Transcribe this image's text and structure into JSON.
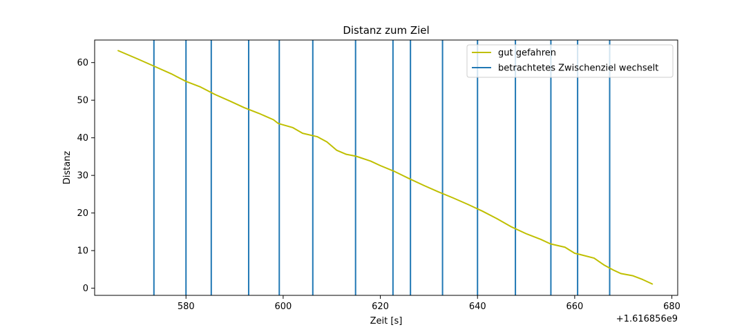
{
  "chart_data": {
    "type": "line",
    "title": "Distanz zum Ziel",
    "xlabel": "Zeit [s]",
    "ylabel": "Distanz",
    "x_offset_label": "+1.616856e9",
    "xlim": [
      561.2,
      681.2
    ],
    "ylim": [
      -1.9,
      66.0
    ],
    "xticks": [
      580,
      600,
      620,
      640,
      660,
      680
    ],
    "yticks": [
      0,
      10,
      20,
      30,
      40,
      50,
      60
    ],
    "grid": false,
    "legend_position": "top-right",
    "series": [
      {
        "name": "gut gefahren",
        "color": "#bfbf00",
        "kind": "line",
        "x": [
          566,
          570,
          573.5,
          577,
          580,
          583,
          586,
          589,
          592,
          595,
          598,
          599,
          602,
          604,
          607,
          609,
          611,
          613,
          615,
          618,
          620,
          623,
          626,
          629,
          632,
          635,
          638,
          641,
          644,
          647,
          650,
          653,
          655,
          658,
          660,
          661,
          664,
          666,
          668,
          669.5,
          672,
          674,
          676
        ],
        "y": [
          63.2,
          61,
          59,
          57,
          55,
          53.5,
          51.5,
          49.8,
          48,
          46.5,
          44.8,
          43.8,
          42.7,
          41.2,
          40.3,
          38.9,
          36.7,
          35.6,
          35.1,
          33.8,
          32.6,
          31,
          29.1,
          27.3,
          25.6,
          24,
          22.3,
          20.5,
          18.5,
          16.3,
          14.5,
          13,
          11.8,
          10.9,
          9.3,
          9,
          8,
          6.2,
          4.8,
          3.9,
          3.3,
          2.3,
          1.1
        ]
      },
      {
        "name": "betrachtetes Zwischenziel wechselt",
        "color": "#1f77b4",
        "kind": "vlines",
        "x": [
          573.4,
          580.0,
          585.2,
          592.9,
          599.2,
          606.1,
          614.9,
          622.6,
          626.2,
          632.8,
          640.0,
          647.8,
          655.1,
          660.6,
          667.2
        ]
      }
    ]
  }
}
